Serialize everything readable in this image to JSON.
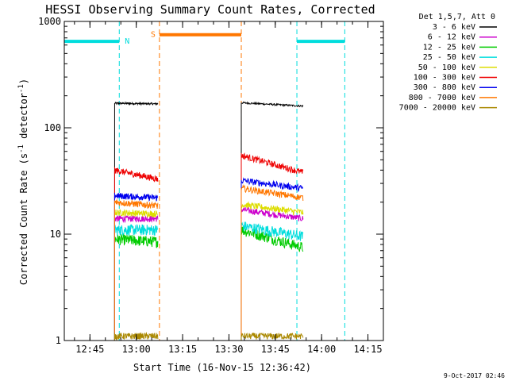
{
  "chart_data": {
    "type": "line",
    "title": "HESSI Observing Summary Count Rates, Corrected",
    "xlabel": "Start Time (16-Nov-15 12:36:42)",
    "ylabel": "Corrected Count Rate (s⁻¹ detector⁻¹)",
    "ylabel_main": "Corrected Count Rate (s",
    "ylabel_sup1": "-1",
    "ylabel_mid": " detector",
    "ylabel_sup2": "-1",
    "ylabel_end": ")",
    "yscale": "log",
    "xlim": [
      "12:36:42",
      "14:20:00"
    ],
    "ylim": [
      1,
      1000
    ],
    "x_ticks": [
      "12:45",
      "13:00",
      "13:15",
      "13:30",
      "13:45",
      "14:00",
      "14:15"
    ],
    "y_ticks": [
      {
        "value": 1,
        "label": "1"
      },
      {
        "value": 10,
        "label": "10"
      },
      {
        "value": 100,
        "label": "100"
      },
      {
        "value": 1000,
        "label": "1000"
      }
    ],
    "legend_header": "Det 1,5,7, Att 0",
    "legend_placement": "outside-right",
    "series": [
      {
        "name": "3 - 6 keV",
        "color": "#000000",
        "segments": [
          {
            "x": [
              "12:53:00",
              "13:07:00"
            ],
            "y": [
              170,
              168
            ]
          },
          {
            "x": [
              "13:34:00",
              "13:54:00"
            ],
            "y": [
              172,
              160
            ]
          }
        ]
      },
      {
        "name": "6 - 12 keV",
        "color": "#cc00cc",
        "segments": [
          {
            "x": [
              "12:53:00",
              "13:07:00"
            ],
            "y": [
              14,
              14
            ]
          },
          {
            "x": [
              "13:34:00",
              "13:54:00"
            ],
            "y": [
              17,
              14
            ]
          }
        ]
      },
      {
        "name": "12 - 25 keV",
        "color": "#00cc00",
        "segments": [
          {
            "x": [
              "12:53:00",
              "13:07:00"
            ],
            "y": [
              9,
              8.5
            ]
          },
          {
            "x": [
              "13:34:00",
              "13:54:00"
            ],
            "y": [
              11,
              7.5
            ]
          }
        ]
      },
      {
        "name": "25 - 50 keV",
        "color": "#00dddd",
        "segments": [
          {
            "x": [
              "12:53:00",
              "13:07:00"
            ],
            "y": [
              11,
              11
            ]
          },
          {
            "x": [
              "13:34:00",
              "13:54:00"
            ],
            "y": [
              12,
              9.5
            ]
          }
        ]
      },
      {
        "name": "50 - 100 keV",
        "color": "#dddd00",
        "segments": [
          {
            "x": [
              "12:53:00",
              "13:07:00"
            ],
            "y": [
              16,
              15.5
            ]
          },
          {
            "x": [
              "13:34:00",
              "13:54:00"
            ],
            "y": [
              19,
              16
            ]
          }
        ]
      },
      {
        "name": "100 - 300 keV",
        "color": "#ee0000",
        "segments": [
          {
            "x": [
              "12:53:00",
              "13:07:00"
            ],
            "y": [
              40,
              33
            ]
          },
          {
            "x": [
              "13:34:00",
              "13:54:00"
            ],
            "y": [
              55,
              38
            ]
          }
        ]
      },
      {
        "name": "300 - 800 keV",
        "color": "#0000ee",
        "segments": [
          {
            "x": [
              "12:53:00",
              "13:07:00"
            ],
            "y": [
              23,
              22
            ]
          },
          {
            "x": [
              "13:34:00",
              "13:54:00"
            ],
            "y": [
              32,
              27
            ]
          }
        ]
      },
      {
        "name": "800 - 7000 keV",
        "color": "#ff7700",
        "segments": [
          {
            "x": [
              "12:53:00",
              "13:07:00"
            ],
            "y": [
              20,
              18.5
            ]
          },
          {
            "x": [
              "13:34:00",
              "13:54:00"
            ],
            "y": [
              27,
              22
            ]
          }
        ]
      },
      {
        "name": "7000 - 20000 keV",
        "color": "#aa8800",
        "segments": [
          {
            "x": [
              "12:53:00",
              "13:07:00"
            ],
            "y": [
              1.1,
              1.1
            ]
          },
          {
            "x": [
              "13:34:00",
              "13:54:00"
            ],
            "y": [
              1.1,
              1.1
            ]
          }
        ]
      }
    ],
    "flags": [
      {
        "label": "N",
        "color": "#00dddd",
        "bars": [
          [
            "12:36:42",
            "12:54:30"
          ],
          [
            "13:52:00",
            "14:07:30"
          ]
        ],
        "level": 650
      },
      {
        "label": "S",
        "color": "#ff7700",
        "bars": [
          [
            "13:07:30",
            "13:34:00"
          ]
        ],
        "level": 750
      }
    ],
    "footer_date": "9-Oct-2017 02:46"
  }
}
